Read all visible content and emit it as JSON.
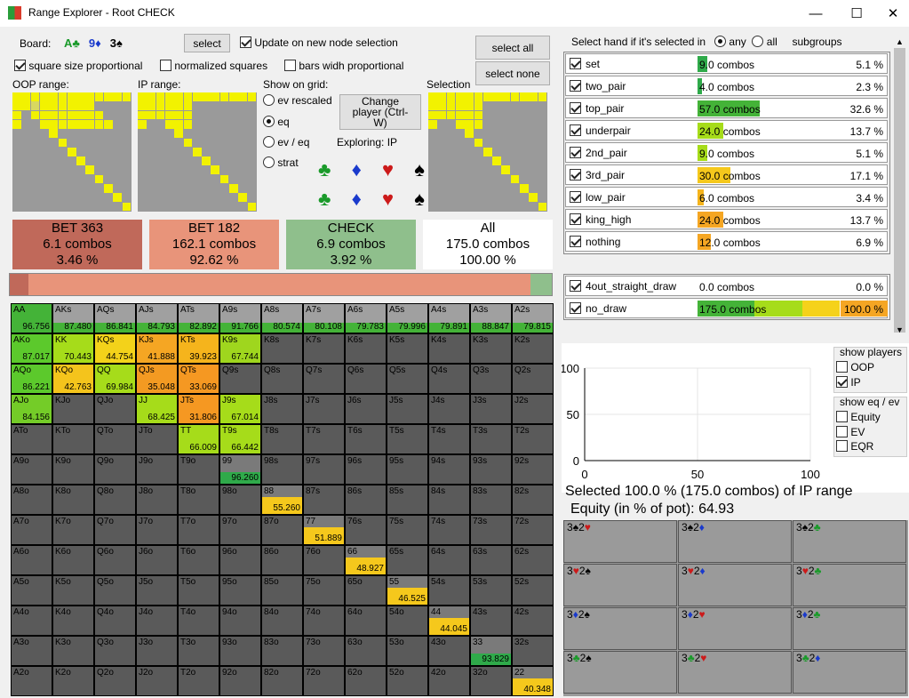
{
  "window": {
    "title": "Range Explorer  - Root CHECK",
    "minimize": "—",
    "maximize": "☐",
    "close": "✕"
  },
  "top": {
    "board_label": "Board:",
    "board": [
      {
        "card": "A♣",
        "color": "#1a9a2a"
      },
      {
        "card": "9♦",
        "color": "#1a3acc"
      },
      {
        "card": "3♠",
        "color": "#000000"
      }
    ],
    "select_btn": "select",
    "update_label": "Update on new node selection",
    "select_all": "select all",
    "select_none": "select none",
    "square_prop": "square size proportional",
    "normalized": "normalized squares",
    "bars_prop": "bars widh proportional",
    "oop_range": "OOP range:",
    "ip_range": "IP range:",
    "show_on_grid": "Show on grid:",
    "selection": "Selection",
    "opt_ev_rescaled": "ev rescaled",
    "opt_eq": "eq",
    "opt_ev_eq": "ev / eq",
    "opt_strat": "strat",
    "change_player": "Change player (Ctrl-W)",
    "exploring": "Exploring: IP",
    "suits": [
      "♣",
      "♦",
      "♥",
      "♠"
    ]
  },
  "summary": [
    {
      "name": "BET 363",
      "combos": "6.1 combos",
      "pct": "3.46 %",
      "color": "#c0695a"
    },
    {
      "name": "BET 182",
      "combos": "162.1 combos",
      "pct": "92.62 %",
      "color": "#e8947a"
    },
    {
      "name": "CHECK",
      "combos": "6.9 combos",
      "pct": "3.92 %",
      "color": "#8fbf8c"
    },
    {
      "name": "All",
      "combos": "175.0 combos",
      "pct": "100.00 %",
      "color": "#ffffff"
    }
  ],
  "strategy_bar": [
    {
      "frac": 0.0346,
      "color": "#c0695a"
    },
    {
      "frac": 0.9262,
      "color": "#e8947a"
    },
    {
      "frac": 0.0392,
      "color": "#8fbf8c"
    }
  ],
  "grid": {
    "ranks": [
      "A",
      "K",
      "Q",
      "J",
      "T",
      "9",
      "8",
      "7",
      "6",
      "5",
      "4",
      "3",
      "2"
    ],
    "values": {
      "AA": "96.756",
      "AKs": "87.480",
      "AQs": "86.841",
      "AJs": "84.793",
      "ATs": "82.892",
      "A9s": "91.766",
      "A8s": "80.574",
      "A7s": "80.108",
      "A6s": "79.783",
      "A5s": "79.996",
      "A4s": "79.891",
      "A3s": "88.847",
      "A2s": "79.815",
      "AKo": "87.017",
      "KK": "70.443",
      "KQs": "44.754",
      "KJs": "41.888",
      "KTs": "39.923",
      "K9s": "67.744",
      "AQo": "86.221",
      "KQo": "42.763",
      "QQ": "69.984",
      "QJs": "35.048",
      "QTs": "33.069",
      "AJo": "84.156",
      "JJ": "68.425",
      "JTs": "31.806",
      "J9s": "67.014",
      "TT": "66.009",
      "T9s": "66.442",
      "99": "96.260",
      "88": "55.260",
      "77": "51.889",
      "66": "48.927",
      "55": "46.525",
      "44": "44.045",
      "33": "93.829",
      "22": "40.348"
    },
    "fills": {
      "AA": [
        1,
        "#44b338"
      ],
      "AKs": [
        0.35,
        "#44b338"
      ],
      "AQs": [
        0.35,
        "#44b338"
      ],
      "AJs": [
        0.35,
        "#44b338"
      ],
      "ATs": [
        0.35,
        "#44b338"
      ],
      "A9s": [
        0.35,
        "#44b338"
      ],
      "A8s": [
        0.35,
        "#44b338"
      ],
      "A7s": [
        0.35,
        "#44b338"
      ],
      "A6s": [
        0.35,
        "#44b338"
      ],
      "A5s": [
        0.35,
        "#44b338"
      ],
      "A4s": [
        0.35,
        "#44b338"
      ],
      "A3s": [
        0.35,
        "#44b338"
      ],
      "A2s": [
        0.35,
        "#44b338"
      ],
      "AKo": [
        1,
        "#5cc92c"
      ],
      "KK": [
        1,
        "#a6dc1a"
      ],
      "KQs": [
        1,
        "#f3d21a"
      ],
      "KJs": [
        1,
        "#f5a623"
      ],
      "KTs": [
        1,
        "#f5b41c"
      ],
      "K9s": [
        1,
        "#9fd61e"
      ],
      "AQo": [
        1,
        "#5cc92c"
      ],
      "KQo": [
        1,
        "#f4c41c"
      ],
      "QQ": [
        1,
        "#a6dc1a"
      ],
      "QJs": [
        1,
        "#f39a22"
      ],
      "QTs": [
        1,
        "#f59822"
      ],
      "AJo": [
        1,
        "#74cc28"
      ],
      "JJ": [
        1,
        "#a6dc1a"
      ],
      "JTs": [
        1,
        "#f59822"
      ],
      "J9s": [
        1,
        "#a6dc1a"
      ],
      "TT": [
        1,
        "#a6dc1a"
      ],
      "T9s": [
        1,
        "#a6dc1a"
      ],
      "99": [
        0.4,
        "#2faa4a"
      ],
      "88": [
        0.6,
        "#f5c81c"
      ],
      "77": [
        0.6,
        "#f5c81c"
      ],
      "66": [
        0.6,
        "#f5c81c"
      ],
      "55": [
        0.6,
        "#f5c81c"
      ],
      "44": [
        0.6,
        "#f5c81c"
      ],
      "33": [
        0.4,
        "#2faa4a"
      ],
      "22": [
        0.6,
        "#f5c81c"
      ]
    },
    "light": [
      "KK",
      "AKo",
      "KQs",
      "KJs",
      "KTs",
      "K9s",
      "AQo",
      "KQo",
      "QQ",
      "QJs",
      "QTs",
      "AJo",
      "JJ",
      "JTs",
      "J9s",
      "TT",
      "T9s"
    ]
  },
  "subgroups": {
    "header": "Select hand if it's selected in",
    "any": "any",
    "all": "all",
    "sub": "subgroups",
    "rows": [
      {
        "name": "set",
        "combos": "9.0 combos",
        "pct": "5.1 %",
        "bars": [
          [
            0.05,
            "#2faa4a"
          ]
        ]
      },
      {
        "name": "two_pair",
        "combos": "4.0 combos",
        "pct": "2.3 %",
        "bars": [
          [
            0.023,
            "#2faa4a"
          ]
        ]
      },
      {
        "name": "top_pair",
        "combos": "57.0 combos",
        "pct": "32.6 %",
        "bars": [
          [
            0.326,
            "#44b338"
          ]
        ]
      },
      {
        "name": "underpair",
        "combos": "24.0 combos",
        "pct": "13.7 %",
        "bars": [
          [
            0.137,
            "#a6dc1a"
          ]
        ]
      },
      {
        "name": "2nd_pair",
        "combos": "9.0 combos",
        "pct": "5.1 %",
        "bars": [
          [
            0.05,
            "#a6dc1a"
          ]
        ]
      },
      {
        "name": "3rd_pair",
        "combos": "30.0 combos",
        "pct": "17.1 %",
        "bars": [
          [
            0.171,
            "#f5c81c"
          ]
        ]
      },
      {
        "name": "low_pair",
        "combos": "6.0 combos",
        "pct": "3.4 %",
        "bars": [
          [
            0.034,
            "#f5b41c"
          ]
        ]
      },
      {
        "name": "king_high",
        "combos": "24.0 combos",
        "pct": "13.7 %",
        "bars": [
          [
            0.137,
            "#f5a623"
          ]
        ]
      },
      {
        "name": "nothing",
        "combos": "12.0 combos",
        "pct": "6.9 %",
        "bars": [
          [
            0.069,
            "#f5a623"
          ]
        ]
      }
    ],
    "draw_rows": [
      {
        "name": "4out_straight_draw",
        "combos": "0.0 combos",
        "pct": "0.0 %",
        "bars": []
      },
      {
        "name": "no_draw",
        "combos": "175.0 combos",
        "pct": "100.0 %",
        "bars": [
          [
            0.3,
            "#44b338"
          ],
          [
            0.25,
            "#a6dc1a"
          ],
          [
            0.2,
            "#f5d21a"
          ],
          [
            0.25,
            "#f5a623"
          ]
        ]
      }
    ]
  },
  "chart_data": {
    "type": "line",
    "x": [],
    "y": [],
    "xlabel": "",
    "ylabel": "",
    "xlim": [
      0,
      100
    ],
    "ylim": [
      0,
      100
    ],
    "xticks": [
      "0",
      "50",
      "100"
    ],
    "yticks": [
      "100",
      "50",
      "0"
    ],
    "grid": true
  },
  "legend": {
    "show_players": "show players",
    "oop": "OOP",
    "ip": "IP",
    "show_eq": "show eq / ev",
    "equity": "Equity",
    "ev": "EV",
    "eqr": "EQR"
  },
  "selected": {
    "line1": "Selected 100.0 % (175.0 combos) of IP range",
    "line2": "Equity (in % of pot): 64.93"
  },
  "combos": [
    [
      {
        "a": "3",
        "as": "♠",
        "ac": "#000",
        "b": "2",
        "bs": "♥",
        "bc": "#cc1a1a"
      },
      {
        "a": "3",
        "as": "♠",
        "ac": "#000",
        "b": "2",
        "bs": "♦",
        "bc": "#1a3acc"
      },
      {
        "a": "3",
        "as": "♠",
        "ac": "#000",
        "b": "2",
        "bs": "♣",
        "bc": "#1a9a2a"
      }
    ],
    [
      {
        "a": "3",
        "as": "♥",
        "ac": "#cc1a1a",
        "b": "2",
        "bs": "♠",
        "bc": "#000"
      },
      {
        "a": "3",
        "as": "♥",
        "ac": "#cc1a1a",
        "b": "2",
        "bs": "♦",
        "bc": "#1a3acc"
      },
      {
        "a": "3",
        "as": "♥",
        "ac": "#cc1a1a",
        "b": "2",
        "bs": "♣",
        "bc": "#1a9a2a"
      }
    ],
    [
      {
        "a": "3",
        "as": "♦",
        "ac": "#1a3acc",
        "b": "2",
        "bs": "♠",
        "bc": "#000"
      },
      {
        "a": "3",
        "as": "♦",
        "ac": "#1a3acc",
        "b": "2",
        "bs": "♥",
        "bc": "#cc1a1a"
      },
      {
        "a": "3",
        "as": "♦",
        "ac": "#1a3acc",
        "b": "2",
        "bs": "♣",
        "bc": "#1a9a2a"
      }
    ],
    [
      {
        "a": "3",
        "as": "♣",
        "ac": "#1a9a2a",
        "b": "2",
        "bs": "♠",
        "bc": "#000"
      },
      {
        "a": "3",
        "as": "♣",
        "ac": "#1a9a2a",
        "b": "2",
        "bs": "♥",
        "bc": "#cc1a1a"
      },
      {
        "a": "3",
        "as": "♣",
        "ac": "#1a9a2a",
        "b": "2",
        "bs": "♦",
        "bc": "#1a3acc"
      }
    ]
  ]
}
